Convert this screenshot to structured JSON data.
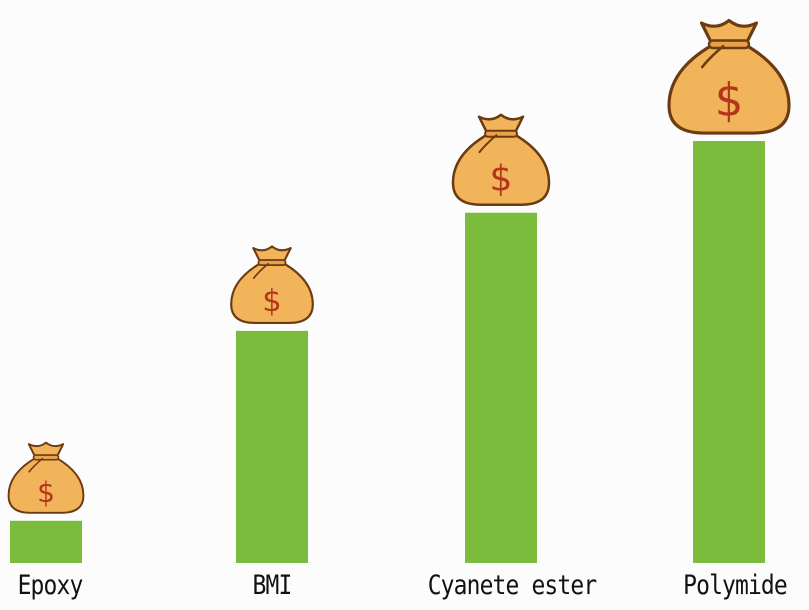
{
  "chart_data": {
    "type": "bar",
    "title": "",
    "xlabel": "",
    "ylabel": "",
    "categories": [
      "Epoxy",
      "BMI",
      "Cyanete ester",
      "Polymide"
    ],
    "values": [
      10,
      55,
      83,
      100
    ],
    "value_units": "relative (Polymide = 100), no axis printed",
    "ylim": [
      0,
      100
    ],
    "grid": false,
    "legend": "none",
    "bar_color": "#7cbc3c",
    "marker_icon": "money-bag-icon",
    "marker_color": "#f2b45a"
  }
}
